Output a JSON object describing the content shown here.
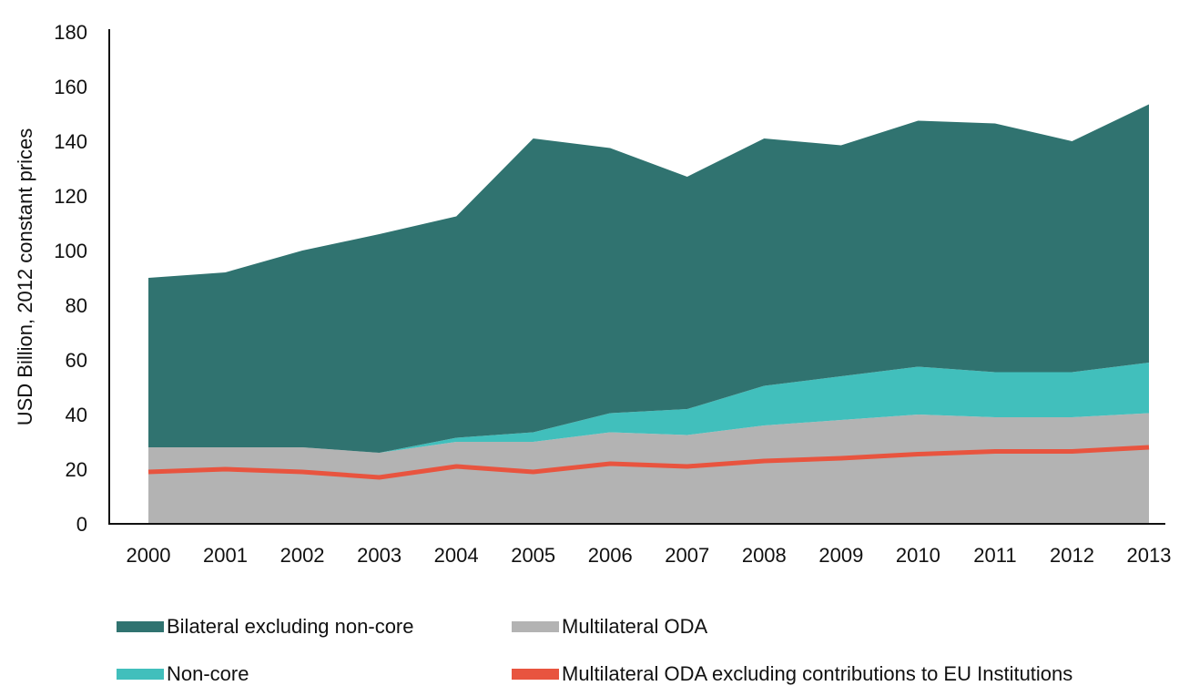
{
  "chart_data": {
    "type": "area",
    "title": "",
    "xlabel": "",
    "ylabel": "USD Billion, 2012 constant prices",
    "ylim": [
      0,
      180
    ],
    "yticks": [
      0,
      20,
      40,
      60,
      80,
      100,
      120,
      140,
      160,
      180
    ],
    "categories": [
      "2000",
      "2001",
      "2002",
      "2003",
      "2004",
      "2005",
      "2006",
      "2007",
      "2008",
      "2009",
      "2010",
      "2011",
      "2012",
      "2013"
    ],
    "stacking": "stacked",
    "grid": false,
    "legend_position": "bottom",
    "series": [
      {
        "name": "Multilateral ODA",
        "kind": "area",
        "color": "#b3b3b3",
        "values": [
          28,
          28,
          28,
          26,
          30,
          30,
          33.5,
          32.5,
          36,
          38,
          40,
          39,
          39,
          40.5
        ]
      },
      {
        "name": "Non-core",
        "kind": "area",
        "color": "#41bfbc",
        "values": [
          0,
          0,
          0,
          0,
          1.5,
          3.5,
          7,
          9.5,
          14.5,
          16,
          17.5,
          16.5,
          16.5,
          18.5
        ]
      },
      {
        "name": "Bilateral excluding non-core",
        "kind": "area",
        "color": "#307370",
        "values": [
          62,
          64,
          72,
          80,
          81,
          107.5,
          97,
          85,
          90.5,
          84.5,
          90,
          91,
          84.5,
          94.5
        ]
      },
      {
        "name": "Multilateral ODA excluding contributions to EU Institutions",
        "kind": "line",
        "color": "#e8543f",
        "values": [
          19,
          20,
          19,
          17,
          21,
          19,
          22,
          21,
          23,
          24,
          25.5,
          26.5,
          26.5,
          28
        ]
      }
    ]
  },
  "legend": {
    "items": [
      {
        "label": "Bilateral excluding non-core",
        "color": "#307370"
      },
      {
        "label": "Multilateral ODA",
        "color": "#b3b3b3"
      },
      {
        "label": "Non-core",
        "color": "#41bfbc"
      },
      {
        "label": "Multilateral ODA excluding contributions to EU Institutions",
        "color": "#e8543f"
      }
    ]
  }
}
